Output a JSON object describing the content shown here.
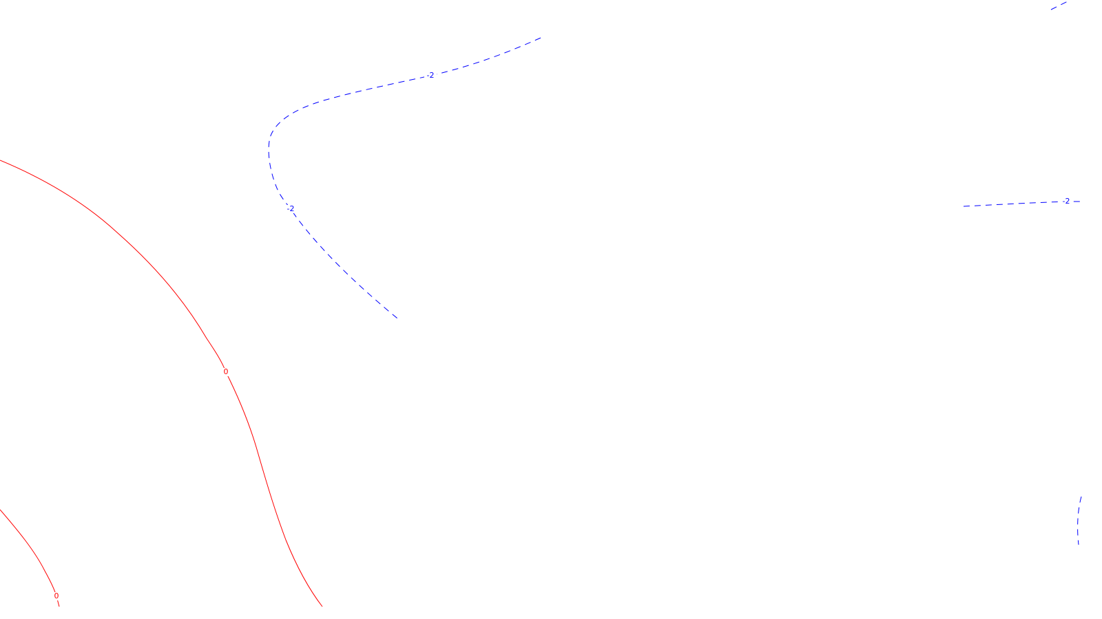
{
  "map": {
    "background_color": "#ffffff",
    "contours": [
      {
        "id": "positive-0-outer",
        "level": 0,
        "label": "0",
        "color": "#ff0000",
        "style": "solid"
      },
      {
        "id": "positive-0-inner",
        "level": 0,
        "label": "0",
        "color": "#ff0000",
        "style": "solid"
      },
      {
        "id": "negative-2-bend",
        "level": -2,
        "label": "-2",
        "color": "#0000ff",
        "style": "dashed"
      },
      {
        "id": "negative-2-right",
        "level": -2,
        "label": "-2",
        "color": "#0000ff",
        "style": "dashed"
      },
      {
        "id": "negative-2-top-right",
        "level": -2,
        "label": "",
        "color": "#0000ff",
        "style": "dashed"
      },
      {
        "id": "negative-edge-right",
        "level": null,
        "label": "",
        "color": "#0000ff",
        "style": "dashed"
      }
    ]
  }
}
